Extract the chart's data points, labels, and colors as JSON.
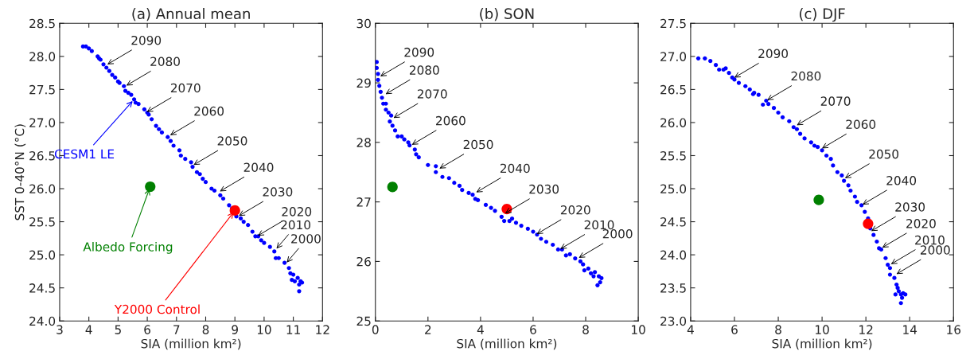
{
  "chart_data": [
    {
      "type": "scatter",
      "title": "(a) Annual mean",
      "xlabel": "SIA (million km²)",
      "ylabel": "SST 0-40°N (°C)",
      "xlim": [
        3,
        12
      ],
      "xticks": [
        3,
        4,
        5,
        6,
        7,
        8,
        9,
        10,
        11,
        12
      ],
      "ylim": [
        24.0,
        28.5
      ],
      "yticks": [
        {
          "value": 24.0,
          "label": "24.0"
        },
        {
          "value": 24.5,
          "label": "24.5"
        },
        {
          "value": 25.0,
          "label": "25.0"
        },
        {
          "value": 25.5,
          "label": "25.5"
        },
        {
          "value": 26.0,
          "label": "26.0"
        },
        {
          "value": 26.5,
          "label": "26.5"
        },
        {
          "value": 27.0,
          "label": "27.0"
        },
        {
          "value": 27.5,
          "label": "27.5"
        },
        {
          "value": 28.0,
          "label": "28.0"
        },
        {
          "value": 28.5,
          "label": "28.5"
        }
      ],
      "grid": false,
      "legend": false,
      "marker": "circle",
      "series": [
        {
          "name": "CESM1 LE",
          "color": "#0000ff",
          "x": [
            3.8,
            3.9,
            4.0,
            4.1,
            4.3,
            4.35,
            4.4,
            4.5,
            4.6,
            4.7,
            4.8,
            4.9,
            5.0,
            5.05,
            5.2,
            5.25,
            5.35,
            5.45,
            5.55,
            5.6,
            5.7,
            5.9,
            6.0,
            6.05,
            6.15,
            6.3,
            6.4,
            6.5,
            6.7,
            6.8,
            6.9,
            7.1,
            7.15,
            7.3,
            7.5,
            7.55,
            7.7,
            7.8,
            7.9,
            8.0,
            8.2,
            8.3,
            8.5,
            8.6,
            8.8,
            8.9,
            9.05,
            9.2,
            9.3,
            9.45,
            9.6,
            9.7,
            9.8,
            9.9,
            10.0,
            10.2,
            10.35,
            10.4,
            10.5,
            10.7,
            10.85,
            10.9,
            10.95,
            11.0,
            11.05,
            11.15,
            11.2,
            11.25,
            11.3,
            11.2
          ],
          "values": [
            28.15,
            28.15,
            28.12,
            28.08,
            28.0,
            27.97,
            27.95,
            27.88,
            27.83,
            27.78,
            27.72,
            27.68,
            27.62,
            27.6,
            27.55,
            27.48,
            27.45,
            27.42,
            27.35,
            27.3,
            27.28,
            27.2,
            27.15,
            27.12,
            27.05,
            26.95,
            26.9,
            26.85,
            26.78,
            26.72,
            26.65,
            26.58,
            26.5,
            26.45,
            26.4,
            26.33,
            26.25,
            26.22,
            26.15,
            26.1,
            26.0,
            25.97,
            25.9,
            25.85,
            25.75,
            25.7,
            25.58,
            25.55,
            25.5,
            25.45,
            25.35,
            25.28,
            25.28,
            25.22,
            25.18,
            25.12,
            25.05,
            24.95,
            24.95,
            24.88,
            24.8,
            24.72,
            24.62,
            24.7,
            24.6,
            24.65,
            24.55,
            24.6,
            24.58,
            24.45
          ]
        },
        {
          "name": "Albedo Forcing",
          "color": "#008000",
          "x": [
            6.1
          ],
          "values": [
            26.03
          ]
        },
        {
          "name": "Y2000 Control",
          "color": "#ff0000",
          "x": [
            9.0
          ],
          "values": [
            25.67
          ]
        }
      ],
      "annotations": [
        {
          "text": "2090",
          "x": 4.6,
          "y": 27.87
        },
        {
          "text": "2080",
          "x": 5.25,
          "y": 27.55
        },
        {
          "text": "2070",
          "x": 5.95,
          "y": 27.15
        },
        {
          "text": "2060",
          "x": 6.75,
          "y": 26.8
        },
        {
          "text": "2050",
          "x": 7.55,
          "y": 26.35
        },
        {
          "text": "2040",
          "x": 8.45,
          "y": 25.95
        },
        {
          "text": "2030",
          "x": 9.1,
          "y": 25.58
        },
        {
          "text": "2020",
          "x": 9.75,
          "y": 25.28
        },
        {
          "text": "2010",
          "x": 10.4,
          "y": 25.08
        },
        {
          "text": "2000",
          "x": 10.75,
          "y": 24.87
        }
      ]
    },
    {
      "type": "scatter",
      "title": "(b) SON",
      "xlabel": "SIA (million km²)",
      "xlim": [
        0,
        10
      ],
      "xticks": [
        0,
        2,
        4,
        6,
        8,
        10
      ],
      "ylim": [
        25,
        30
      ],
      "yticks": [
        25,
        26,
        27,
        28,
        29,
        30
      ],
      "grid": false,
      "legend": false,
      "marker": "circle",
      "series": [
        {
          "color": "#0000ff",
          "x": [
            0.05,
            0.05,
            0.1,
            0.1,
            0.15,
            0.2,
            0.25,
            0.3,
            0.4,
            0.4,
            0.5,
            0.6,
            0.55,
            0.65,
            0.75,
            0.85,
            1.0,
            1.1,
            1.25,
            1.3,
            1.5,
            1.55,
            1.65,
            2.0,
            2.3,
            2.3,
            2.55,
            2.8,
            3.0,
            3.2,
            3.3,
            3.55,
            3.7,
            3.8,
            3.9,
            4.2,
            4.4,
            4.55,
            4.8,
            4.9,
            5.1,
            5.2,
            5.35,
            5.55,
            5.8,
            6.0,
            6.15,
            6.3,
            6.5,
            6.75,
            6.95,
            7.1,
            7.25,
            7.4,
            7.6,
            7.8,
            7.9,
            7.95,
            8.1,
            8.2,
            8.3,
            8.35,
            8.5,
            8.6,
            8.45,
            8.55
          ],
          "values": [
            29.35,
            29.25,
            29.15,
            29.05,
            28.95,
            28.85,
            28.75,
            28.65,
            28.65,
            28.55,
            28.5,
            28.45,
            28.35,
            28.28,
            28.2,
            28.1,
            28.1,
            28.05,
            28.0,
            27.95,
            27.88,
            27.8,
            27.75,
            27.62,
            27.6,
            27.5,
            27.42,
            27.4,
            27.32,
            27.27,
            27.2,
            27.15,
            27.12,
            27.05,
            27.03,
            26.95,
            26.9,
            26.85,
            26.75,
            26.68,
            26.68,
            26.72,
            26.65,
            26.6,
            26.55,
            26.5,
            26.45,
            26.38,
            26.33,
            26.28,
            26.2,
            26.2,
            26.1,
            26.12,
            26.05,
            26.0,
            25.95,
            25.85,
            25.88,
            25.8,
            25.75,
            25.82,
            25.75,
            25.72,
            25.6,
            25.65
          ]
        },
        {
          "color": "#008000",
          "x": [
            0.65
          ],
          "values": [
            27.25
          ]
        },
        {
          "color": "#ff0000",
          "x": [
            5.0
          ],
          "values": [
            26.88
          ]
        }
      ],
      "annotations": [
        {
          "text": "2090",
          "x": 0.15,
          "y": 29.1
        },
        {
          "text": "2080",
          "x": 0.35,
          "y": 28.8
        },
        {
          "text": "2070",
          "x": 0.65,
          "y": 28.4
        },
        {
          "text": "2060",
          "x": 1.35,
          "y": 27.95
        },
        {
          "text": "2050",
          "x": 2.4,
          "y": 27.55
        },
        {
          "text": "2040",
          "x": 3.8,
          "y": 27.15
        },
        {
          "text": "2030",
          "x": 4.9,
          "y": 26.8
        },
        {
          "text": "2020",
          "x": 6.1,
          "y": 26.45
        },
        {
          "text": "2010",
          "x": 7.0,
          "y": 26.2
        },
        {
          "text": "2000",
          "x": 7.7,
          "y": 26.05
        }
      ]
    },
    {
      "type": "scatter",
      "title": "(c) DJF",
      "xlabel": "SIA (million km²)",
      "xlim": [
        4,
        16
      ],
      "xticks": [
        4,
        6,
        8,
        10,
        12,
        14,
        16
      ],
      "ylim": [
        23.0,
        27.5
      ],
      "yticks": [
        {
          "value": 23.0,
          "label": "23.0"
        },
        {
          "value": 23.5,
          "label": "23.5"
        },
        {
          "value": 24.0,
          "label": "24.0"
        },
        {
          "value": 24.5,
          "label": "24.5"
        },
        {
          "value": 25.0,
          "label": "25.0"
        },
        {
          "value": 25.5,
          "label": "25.5"
        },
        {
          "value": 26.0,
          "label": "26.0"
        },
        {
          "value": 26.5,
          "label": "26.5"
        },
        {
          "value": 27.0,
          "label": "27.0"
        },
        {
          "value": 27.5,
          "label": "27.5"
        }
      ],
      "grid": false,
      "legend": false,
      "marker": "circle",
      "series": [
        {
          "color": "#0000ff",
          "x": [
            4.35,
            4.65,
            4.9,
            5.15,
            5.3,
            5.5,
            5.6,
            5.75,
            5.9,
            6.0,
            6.2,
            6.5,
            6.7,
            6.85,
            6.9,
            7.1,
            7.3,
            7.45,
            7.55,
            7.8,
            8.0,
            8.2,
            8.5,
            8.7,
            8.85,
            9.0,
            9.2,
            9.5,
            9.65,
            9.8,
            10.0,
            10.2,
            10.4,
            10.5,
            10.7,
            10.9,
            11.0,
            11.2,
            11.3,
            11.5,
            11.6,
            11.8,
            11.95,
            12.1,
            12.2,
            12.35,
            12.5,
            12.6,
            12.7,
            12.9,
            13.0,
            13.1,
            13.1,
            13.3,
            13.4,
            13.45,
            13.35,
            13.5,
            13.6,
            13.7,
            13.8,
            13.65,
            13.6
          ],
          "values": [
            26.97,
            26.97,
            26.93,
            26.87,
            26.8,
            26.8,
            26.82,
            26.75,
            26.68,
            26.65,
            26.6,
            26.55,
            26.5,
            26.43,
            26.45,
            26.42,
            26.27,
            26.33,
            26.28,
            26.22,
            26.15,
            26.08,
            26.02,
            25.93,
            25.9,
            25.83,
            25.76,
            25.7,
            25.65,
            25.63,
            25.58,
            25.5,
            25.45,
            25.35,
            25.25,
            25.2,
            25.12,
            25.05,
            24.97,
            24.88,
            24.8,
            24.75,
            24.65,
            24.55,
            24.4,
            24.3,
            24.2,
            24.1,
            24.08,
            23.95,
            23.85,
            23.8,
            23.7,
            23.65,
            23.55,
            23.5,
            23.4,
            23.45,
            23.4,
            23.42,
            23.4,
            23.35,
            23.27
          ]
        },
        {
          "color": "#008000",
          "x": [
            9.85
          ],
          "values": [
            24.83
          ]
        },
        {
          "color": "#ff0000",
          "x": [
            12.1
          ],
          "values": [
            24.47
          ]
        }
      ],
      "annotations": [
        {
          "text": "2090",
          "x": 5.95,
          "y": 26.67
        },
        {
          "text": "2080",
          "x": 7.45,
          "y": 26.33
        },
        {
          "text": "2070",
          "x": 8.8,
          "y": 25.95
        },
        {
          "text": "2060",
          "x": 9.95,
          "y": 25.6
        },
        {
          "text": "2050",
          "x": 11.0,
          "y": 25.15
        },
        {
          "text": "2040",
          "x": 11.8,
          "y": 24.75
        },
        {
          "text": "2030",
          "x": 12.2,
          "y": 24.35
        },
        {
          "text": "2020",
          "x": 12.7,
          "y": 24.1
        },
        {
          "text": "2010",
          "x": 13.1,
          "y": 23.85
        },
        {
          "text": "2000",
          "x": 13.35,
          "y": 23.7
        }
      ]
    }
  ]
}
